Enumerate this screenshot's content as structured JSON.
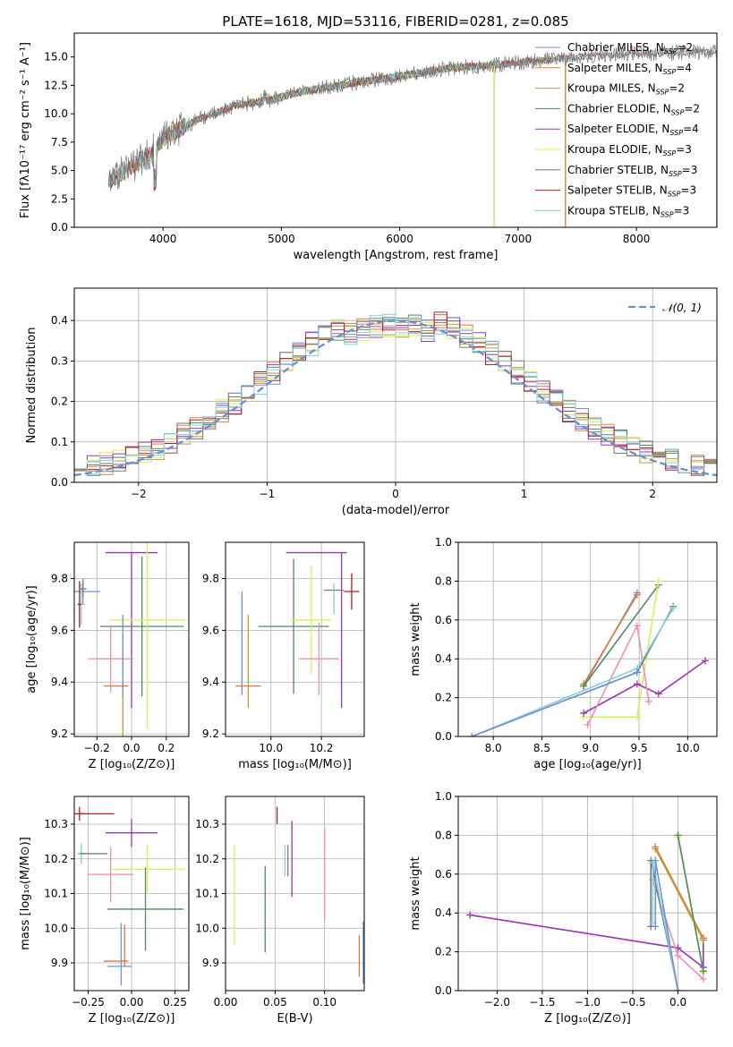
{
  "figure_title": "PLATE=1618, MJD=53116, FIBERID=0281, z=0.085",
  "colors": {
    "chabrier_miles": "#6f93d6",
    "salpeter_miles": "#e07b39",
    "kroupa_miles": "#c8963e",
    "chabrier_elodie": "#4f8a5e",
    "salpeter_elodie": "#9b35b5",
    "kroupa_elodie": "#d8ef5a",
    "chabrier_stelib": "#7a7a7a",
    "salpeter_stelib": "#b32020",
    "kroupa_stelib": "#7ed3dc",
    "pink": "#ee8fb6",
    "normal": "#6a8fd6"
  },
  "chart_data": [
    {
      "id": "spectrum",
      "type": "line",
      "xlabel": "wavelength [Angstrom, rest frame]",
      "ylabel": "Flux [fλ10⁻¹⁷ erg cm⁻² s⁻¹ A⁻¹]",
      "xlim": [
        3250,
        8680
      ],
      "ylim": [
        0,
        17.1
      ],
      "xticks": [
        4000,
        5000,
        6000,
        7000,
        8000
      ],
      "yticks": [
        0.0,
        2.5,
        5.0,
        7.5,
        10.0,
        12.5,
        15.0
      ],
      "grid": false,
      "legend_position": "right",
      "legend": [
        {
          "label": "Chabrier MILES, N",
          "sub": "SSP",
          "suffix": "=2",
          "color": "chabrier_miles"
        },
        {
          "label": "Salpeter MILES, N",
          "sub": "SSP",
          "suffix": "=4",
          "color": "salpeter_miles"
        },
        {
          "label": "Kroupa MILES, N",
          "sub": "SSP",
          "suffix": "=2",
          "color": "kroupa_miles"
        },
        {
          "label": "Chabrier ELODIE, N",
          "sub": "SSP",
          "suffix": "=2",
          "color": "chabrier_elodie"
        },
        {
          "label": "Salpeter ELODIE, N",
          "sub": "SSP",
          "suffix": "=4",
          "color": "salpeter_elodie"
        },
        {
          "label": "Kroupa ELODIE, N",
          "sub": "SSP",
          "suffix": "=3",
          "color": "kroupa_elodie"
        },
        {
          "label": "Chabrier STELIB, N",
          "sub": "SSP",
          "suffix": "=3",
          "color": "chabrier_stelib"
        },
        {
          "label": "Salpeter STELIB, N",
          "sub": "SSP",
          "suffix": "=3",
          "color": "salpeter_stelib"
        },
        {
          "label": "Kroupa STELIB, N",
          "sub": "SSP",
          "suffix": "=3",
          "color": "kroupa_stelib"
        }
      ],
      "continuum": [
        [
          3530,
          4.0
        ],
        [
          3700,
          5.0
        ],
        [
          3900,
          6.6
        ],
        [
          4050,
          8.2
        ],
        [
          4300,
          9.5
        ],
        [
          4600,
          10.7
        ],
        [
          4900,
          11.2
        ],
        [
          5200,
          12.0
        ],
        [
          5600,
          12.7
        ],
        [
          6000,
          13.3
        ],
        [
          6400,
          14.0
        ],
        [
          6800,
          14.3
        ],
        [
          7200,
          14.7
        ],
        [
          7600,
          15.1
        ],
        [
          8000,
          15.3
        ],
        [
          8400,
          15.4
        ],
        [
          8680,
          15.5
        ]
      ],
      "model_ranges": [
        {
          "model": "chabrier_miles",
          "x": [
            3540,
            7400
          ]
        },
        {
          "model": "salpeter_miles",
          "x": [
            3540,
            7400
          ]
        },
        {
          "model": "kroupa_miles",
          "x": [
            3540,
            7400
          ]
        },
        {
          "model": "chabrier_elodie",
          "x": [
            3900,
            6800
          ]
        },
        {
          "model": "salpeter_elodie",
          "x": [
            3900,
            6800
          ]
        },
        {
          "model": "kroupa_elodie",
          "x": [
            3900,
            6800
          ]
        },
        {
          "model": "chabrier_stelib",
          "x": [
            3540,
            8680
          ]
        },
        {
          "model": "salpeter_stelib",
          "x": [
            3540,
            8680
          ]
        },
        {
          "model": "kroupa_stelib",
          "x": [
            3540,
            8680
          ]
        }
      ]
    },
    {
      "id": "residuals",
      "type": "step",
      "xlabel": "(data-model)/error",
      "ylabel": "Normed distribution",
      "xlim": [
        -2.5,
        2.5
      ],
      "ylim": [
        0,
        0.48
      ],
      "xticks": [
        -2,
        -1,
        0,
        1,
        2
      ],
      "yticks": [
        0.0,
        0.1,
        0.2,
        0.3,
        0.4
      ],
      "grid": true,
      "legend_position": "top-right",
      "legend": [
        {
          "label": "𝒩(0, 1)",
          "color": "normal",
          "style": "dashed"
        }
      ],
      "bin_edges": {
        "start": -2.5,
        "width": 0.1,
        "count": 50
      },
      "histogram_models": [
        "chabrier_miles",
        "salpeter_miles",
        "kroupa_miles",
        "chabrier_elodie",
        "salpeter_elodie",
        "kroupa_elodie",
        "chabrier_stelib",
        "salpeter_stelib",
        "kroupa_stelib"
      ],
      "gaussian": {
        "mu": 0,
        "sigma": 1
      }
    },
    {
      "id": "z_age",
      "type": "errorbar",
      "xlabel": "Z [log₁₀(Z/Z⊙)]",
      "ylabel": "age  [log₁₀(age/yr)]",
      "xlim": [
        -0.33,
        0.33
      ],
      "ylim": [
        9.19,
        9.94
      ],
      "xticks": [
        -0.2,
        0.0,
        0.2
      ],
      "yticks": [
        9.2,
        9.4,
        9.6,
        9.8
      ],
      "grid": true,
      "points": [
        {
          "model": "chabrier_miles",
          "x": -0.28,
          "y": 9.75,
          "xerr": 0.1,
          "yerr": 0.05
        },
        {
          "model": "kroupa_stelib",
          "x": -0.29,
          "y": 9.7,
          "xerr": 0.02,
          "yerr": 0.08
        },
        {
          "model": "salpeter_stelib",
          "x": -0.3,
          "y": 9.7,
          "xerr": 0.01,
          "yerr": 0.09
        },
        {
          "model": "chabrier_stelib",
          "x": -0.28,
          "y": 9.76,
          "xerr": 0.02,
          "yerr": 0.03
        },
        {
          "model": "salpeter_elodie",
          "x": 0.0,
          "y": 9.9,
          "xerr": 0.15,
          "yerr": 0.0
        },
        {
          "model": "salpeter_elodie",
          "x": 0.0,
          "y": 9.6,
          "xerr": 0.0,
          "yerr": 0.3
        },
        {
          "model": "chabrier_elodie",
          "x": 0.06,
          "y": 9.615,
          "xerr": 0.24,
          "yerr": 0.27
        },
        {
          "model": "kroupa_elodie",
          "x": 0.09,
          "y": 9.64,
          "xerr": 0.22,
          "yerr": 0.42
        },
        {
          "model": "pink",
          "x": -0.12,
          "y": 9.49,
          "xerr": 0.13,
          "yerr": 0.13
        },
        {
          "model": "salpeter_miles",
          "x": -0.09,
          "y": 9.385,
          "xerr": 0.07,
          "yerr": 0.0
        },
        {
          "model": "kroupa_miles",
          "x": -0.05,
          "y": 9.385,
          "xerr": 0.0,
          "yerr": 0.2
        },
        {
          "model": "chabrier_miles",
          "x": -0.05,
          "y": 9.5,
          "xerr": 0.0,
          "yerr": 0.16
        }
      ]
    },
    {
      "id": "mass_age",
      "type": "errorbar",
      "xlabel": "mass [log₁₀(M/M⊙)]",
      "ylabel": "",
      "xlim": [
        9.82,
        10.37
      ],
      "ylim": [
        9.19,
        9.94
      ],
      "xticks": [
        10.0,
        10.2
      ],
      "yticks": [
        9.2,
        9.4,
        9.6,
        9.8
      ],
      "grid": true,
      "points": [
        {
          "model": "salpeter_elodie",
          "x": 10.18,
          "y": 9.9,
          "xerr": 0.12,
          "yerr": 0.0
        },
        {
          "model": "salpeter_elodie",
          "x": 10.28,
          "y": 9.6,
          "xerr": 0.0,
          "yerr": 0.3
        },
        {
          "model": "chabrier_elodie",
          "x": 10.09,
          "y": 9.615,
          "xerr": 0.14,
          "yerr": 0.26
        },
        {
          "model": "kroupa_elodie",
          "x": 10.16,
          "y": 9.64,
          "xerr": 0.08,
          "yerr": 0.21
        },
        {
          "model": "pink",
          "x": 10.19,
          "y": 9.49,
          "xerr": 0.08,
          "yerr": 0.14
        },
        {
          "model": "salpeter_stelib",
          "x": 10.32,
          "y": 9.75,
          "xerr": 0.03,
          "yerr": 0.07
        },
        {
          "model": "chabrier_stelib",
          "x": 10.25,
          "y": 9.755,
          "xerr": 0.04,
          "yerr": 0.0
        },
        {
          "model": "kroupa_stelib",
          "x": 10.25,
          "y": 9.72,
          "xerr": 0.0,
          "yerr": 0.06
        },
        {
          "model": "chabrier_miles",
          "x": 9.885,
          "y": 9.55,
          "xerr": 0.0,
          "yerr": 0.2
        },
        {
          "model": "salpeter_miles",
          "x": 9.91,
          "y": 9.385,
          "xerr": 0.05,
          "yerr": 0.0
        },
        {
          "model": "kroupa_miles",
          "x": 9.91,
          "y": 9.48,
          "xerr": 0.0,
          "yerr": 0.18
        }
      ]
    },
    {
      "id": "age_weight",
      "type": "line",
      "xlabel": "age  [log₁₀(age/yr)]",
      "ylabel": "mass weight",
      "xlim": [
        7.64,
        10.3
      ],
      "ylim": [
        0.0,
        1.0
      ],
      "xticks": [
        8.0,
        8.5,
        9.0,
        9.5,
        10.0
      ],
      "yticks": [
        0.0,
        0.2,
        0.4,
        0.6,
        0.8,
        1.0
      ],
      "grid": true,
      "series": [
        {
          "model": "chabrier_miles",
          "x": [
            8.93,
            9.48
          ],
          "y": [
            0.26,
            0.74
          ]
        },
        {
          "model": "salpeter_miles",
          "x": [
            8.93,
            9.48
          ],
          "y": [
            0.27,
            0.73
          ]
        },
        {
          "model": "chabrier_elodie",
          "x": [
            8.93,
            9.7
          ],
          "y": [
            0.26,
            0.78
          ]
        },
        {
          "model": "kroupa_elodie",
          "x": [
            8.93,
            9.48,
            9.7
          ],
          "y": [
            0.1,
            0.1,
            0.8
          ]
        },
        {
          "model": "salpeter_elodie",
          "x": [
            8.93,
            9.48,
            9.7,
            10.18
          ],
          "y": [
            0.12,
            0.27,
            0.22,
            0.39
          ]
        },
        {
          "model": "pink",
          "x": [
            8.97,
            9.48,
            9.6
          ],
          "y": [
            0.06,
            0.57,
            0.18
          ]
        },
        {
          "model": "chabrier_stelib",
          "x": [
            7.78,
            9.48,
            9.85
          ],
          "y": [
            0.0,
            0.33,
            0.67
          ]
        },
        {
          "model": "kroupa_stelib",
          "x": [
            7.78,
            9.48,
            9.85
          ],
          "y": [
            0.0,
            0.35,
            0.66
          ]
        },
        {
          "model": "chabrier_miles",
          "x": [
            7.78,
            9.48
          ],
          "y": [
            0.0,
            0.33
          ]
        }
      ]
    },
    {
      "id": "z_mass",
      "type": "errorbar",
      "xlabel": "Z [log₁₀(Z/Z⊙)]",
      "ylabel": "mass [log₁₀(M/M⊙)]",
      "xlim": [
        -0.33,
        0.33
      ],
      "ylim": [
        9.82,
        10.38
      ],
      "xticks": [
        -0.25,
        0.0,
        0.25
      ],
      "yticks": [
        9.9,
        10.0,
        10.1,
        10.2,
        10.3
      ],
      "grid": true,
      "points": [
        {
          "model": "salpeter_stelib",
          "x": -0.3,
          "y": 10.33,
          "xerr": 0.03,
          "yerr": 0.02
        },
        {
          "model": "salpeter_stelib",
          "x": -0.2,
          "y": 10.33,
          "xerr": 0.1,
          "yerr": 0.0
        },
        {
          "model": "salpeter_elodie",
          "x": 0.0,
          "y": 10.275,
          "xerr": 0.15,
          "yerr": 0.04
        },
        {
          "model": "kroupa_stelib",
          "x": -0.29,
          "y": 10.215,
          "xerr": 0.02,
          "yerr": 0.03
        },
        {
          "model": "chabrier_stelib",
          "x": -0.22,
          "y": 10.215,
          "xerr": 0.08,
          "yerr": 0.0
        },
        {
          "model": "pink",
          "x": -0.12,
          "y": 10.155,
          "xerr": 0.13,
          "yerr": 0.08
        },
        {
          "model": "kroupa_elodie",
          "x": 0.09,
          "y": 10.17,
          "xerr": 0.22,
          "yerr": 0.07
        },
        {
          "model": "chabrier_elodie",
          "x": 0.08,
          "y": 10.055,
          "xerr": 0.22,
          "yerr": 0.12
        },
        {
          "model": "chabrier_miles",
          "x": -0.07,
          "y": 9.89,
          "xerr": 0.07,
          "yerr": 0.0
        },
        {
          "model": "chabrier_miles",
          "x": -0.06,
          "y": 9.925,
          "xerr": 0.0,
          "yerr": 0.09
        },
        {
          "model": "salpeter_miles",
          "x": -0.09,
          "y": 9.905,
          "xerr": 0.07,
          "yerr": 0.0
        },
        {
          "model": "salpeter_miles",
          "x": -0.04,
          "y": 9.95,
          "xerr": 0.0,
          "yerr": 0.06
        }
      ]
    },
    {
      "id": "ebv_mass",
      "type": "errorbar",
      "xlabel": "E(B-V)",
      "ylabel": "",
      "xlim": [
        0.0,
        0.14
      ],
      "ylim": [
        9.82,
        10.38
      ],
      "xticks": [
        0.0,
        0.05,
        0.1
      ],
      "yticks": [
        9.9,
        10.0,
        10.1,
        10.2,
        10.3
      ],
      "grid": true,
      "points": [
        {
          "model": "kroupa_elodie",
          "x": 0.009,
          "y": 10.095,
          "xerr": 0.0,
          "yerr": 0.145
        },
        {
          "model": "chabrier_elodie",
          "x": 0.04,
          "y": 10.055,
          "xerr": 0.0,
          "yerr": 0.125
        },
        {
          "model": "salpeter_stelib",
          "x": 0.052,
          "y": 10.325,
          "xerr": 0.0,
          "yerr": 0.025
        },
        {
          "model": "kroupa_stelib",
          "x": 0.06,
          "y": 10.195,
          "xerr": 0.0,
          "yerr": 0.045
        },
        {
          "model": "chabrier_stelib",
          "x": 0.063,
          "y": 10.195,
          "xerr": 0.0,
          "yerr": 0.045
        },
        {
          "model": "salpeter_elodie",
          "x": 0.067,
          "y": 10.2,
          "xerr": 0.0,
          "yerr": 0.11
        },
        {
          "model": "pink",
          "x": 0.1,
          "y": 10.155,
          "xerr": 0.0,
          "yerr": 0.135
        },
        {
          "model": "salpeter_miles",
          "x": 0.135,
          "y": 9.92,
          "xerr": 0.0,
          "yerr": 0.06
        },
        {
          "model": "chabrier_miles",
          "x": 0.139,
          "y": 9.93,
          "xerr": 0.0,
          "yerr": 0.09
        }
      ]
    },
    {
      "id": "z_weight",
      "type": "line",
      "xlabel": "Z [log₁₀(Z/Z⊙)]",
      "ylabel": "mass weight",
      "xlim": [
        -2.43,
        0.43
      ],
      "ylim": [
        0.0,
        1.0
      ],
      "xticks": [
        -2.0,
        -1.5,
        -1.0,
        -0.5,
        0.0
      ],
      "yticks": [
        0.0,
        0.2,
        0.4,
        0.6,
        0.8,
        1.0
      ],
      "grid": true,
      "series": [
        {
          "model": "salpeter_elodie",
          "x": [
            -2.3,
            0.0,
            0.28,
            0.28
          ],
          "y": [
            0.39,
            0.22,
            0.12,
            0.27
          ]
        },
        {
          "model": "salpeter_miles",
          "x": [
            -0.25,
            0.28
          ],
          "y": [
            0.74,
            0.27
          ]
        },
        {
          "model": "kroupa_miles",
          "x": [
            -0.25,
            0.28
          ],
          "y": [
            0.73,
            0.26
          ]
        },
        {
          "model": "kroupa_elodie",
          "x": [
            0.0,
            0.0,
            0.28,
            0.28
          ],
          "y": [
            0.8,
            0.79,
            0.1,
            0.09
          ]
        },
        {
          "model": "chabrier_elodie",
          "x": [
            0.0,
            0.28
          ],
          "y": [
            0.8,
            0.1
          ]
        },
        {
          "model": "pink",
          "x": [
            -0.28,
            0.0,
            0.28
          ],
          "y": [
            0.57,
            0.18,
            0.06
          ]
        },
        {
          "model": "chabrier_stelib",
          "x": [
            -0.3,
            -0.3,
            0.0
          ],
          "y": [
            0.33,
            0.67,
            0.0
          ]
        },
        {
          "model": "kroupa_stelib",
          "x": [
            -0.28,
            -0.28,
            0.0
          ],
          "y": [
            0.35,
            0.66,
            0.0
          ]
        },
        {
          "model": "chabrier_miles",
          "x": [
            -0.25,
            -0.25,
            0.0
          ],
          "y": [
            0.33,
            0.67,
            0.0
          ]
        }
      ]
    }
  ]
}
